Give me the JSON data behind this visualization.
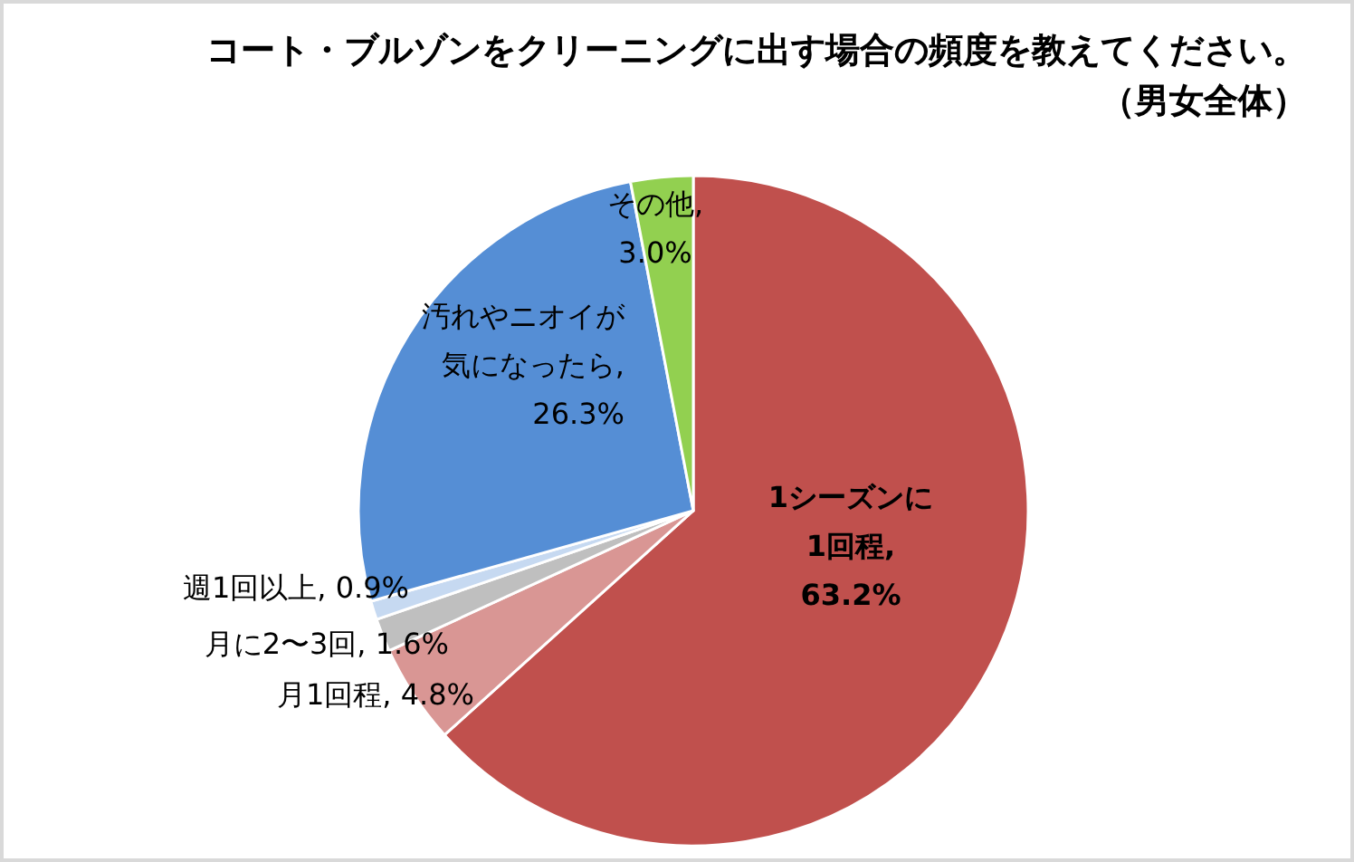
{
  "chart_data": {
    "type": "pie",
    "title": "コート・ブルゾンをクリーニングに出す場合の頻度を教えてください。",
    "subtitle": "（男女全体）",
    "categories": [
      "1シーズンに1回程",
      "月1回程",
      "月に2〜3回",
      "週1回以上",
      "汚れやニオイが気になったら",
      "その他"
    ],
    "values": [
      63.2,
      4.8,
      1.6,
      0.9,
      26.3,
      3.0
    ],
    "value_labels": [
      ", 63.2%",
      ", 4.8%",
      ", 1.6%",
      ", 0.9%",
      ", 26.3%",
      ", 3.0%"
    ],
    "colors": [
      "#c0504d",
      "#d99694",
      "#bfbfbf",
      "#c6d9f1",
      "#558ed5",
      "#92d050"
    ],
    "legend": false
  }
}
